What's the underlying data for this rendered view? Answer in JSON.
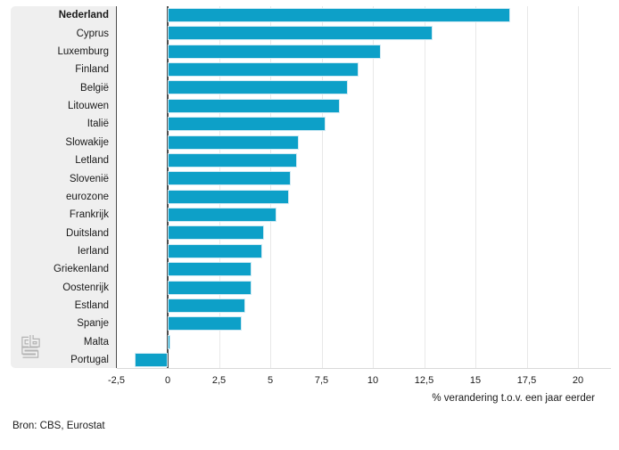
{
  "chart_data": {
    "type": "bar",
    "orientation": "horizontal",
    "title": "",
    "xlabel": "% verandering t.o.v. een jaar eerder",
    "ylabel": "",
    "categories": [
      "Nederland",
      "Cyprus",
      "Luxemburg",
      "Finland",
      "België",
      "Litouwen",
      "Italië",
      "Slowakije",
      "Letland",
      "Slovenië",
      "eurozone",
      "Frankrijk",
      "Duitsland",
      "Ierland",
      "Griekenland",
      "Oostenrijk",
      "Estland",
      "Spanje",
      "Malta",
      "Portugal"
    ],
    "values": [
      16.7,
      12.9,
      10.4,
      9.3,
      8.8,
      8.4,
      7.7,
      6.4,
      6.3,
      6.0,
      5.9,
      5.3,
      4.7,
      4.6,
      4.1,
      4.1,
      3.8,
      3.6,
      0.1,
      -1.6
    ],
    "emphasized_category": "Nederland",
    "xlim": [
      -2.5,
      20
    ],
    "xticks": [
      -2.5,
      0,
      2.5,
      5,
      7.5,
      10,
      12.5,
      15,
      17.5,
      20
    ],
    "xtick_labels": [
      "-2,5",
      "0",
      "2,5",
      "5",
      "7,5",
      "10",
      "12,5",
      "15",
      "17,5",
      "20"
    ],
    "grid": "vertical",
    "legend": "none"
  },
  "source": {
    "label": "Bron: CBS, Eurostat"
  },
  "logo": {
    "name": "cbs-logo"
  },
  "colors": {
    "bar": "#0da0c8",
    "bar_border": "#cfe9f3",
    "axis": "#4d4d4d",
    "grid": "#e8e8e8",
    "panel": "#efefef",
    "baseline": "#d9d9d9",
    "text": "#1a1a1a",
    "logo": "#b3b3b3"
  }
}
